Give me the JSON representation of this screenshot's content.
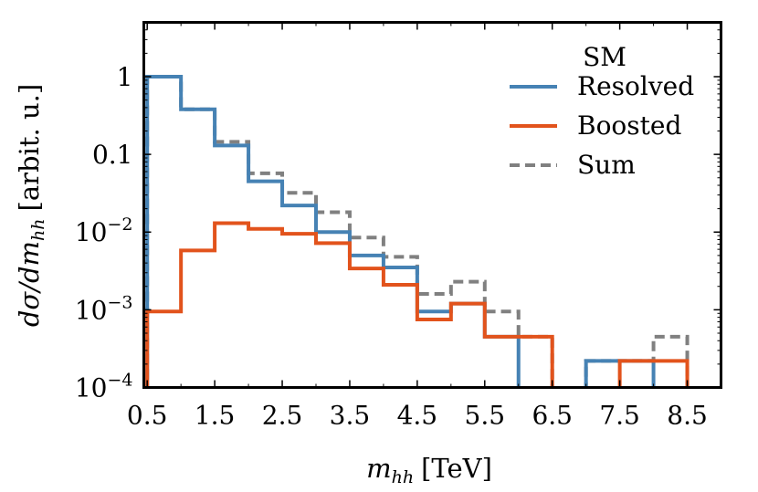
{
  "chart_data": {
    "type": "line",
    "step": "post",
    "title": "",
    "xlabel_var": "m",
    "xlabel_sub": "hh",
    "xlabel_unit": "[TeV]",
    "ylabel_var": "dσ/dm",
    "ylabel_sub": "hh",
    "ylabel_unit": "[arbit. u.]",
    "xscale": "linear",
    "yscale": "log",
    "xlim": [
      0.45,
      9.0
    ],
    "ylim": [
      0.0001,
      5
    ],
    "x_ticks": [
      0.5,
      1.5,
      2.5,
      3.5,
      4.5,
      5.5,
      6.5,
      7.5,
      8.5
    ],
    "x_tick_labels": [
      "0.5",
      "1.5",
      "2.5",
      "3.5",
      "4.5",
      "5.5",
      "6.5",
      "7.5",
      "8.5"
    ],
    "y_ticks": [
      1,
      0.1,
      0.01,
      0.001,
      0.0001
    ],
    "y_tick_labels": [
      {
        "base": "1",
        "exp": ""
      },
      {
        "base": "0.1",
        "exp": ""
      },
      {
        "base": "10",
        "exp": "−2"
      },
      {
        "base": "10",
        "exp": "−3"
      },
      {
        "base": "10",
        "exp": "−4"
      }
    ],
    "bin_edges": [
      0.5,
      1.0,
      1.5,
      2.0,
      2.5,
      3.0,
      3.5,
      4.0,
      4.5,
      5.0,
      5.5,
      6.0,
      6.5,
      7.0,
      7.5,
      8.0,
      8.5
    ],
    "series": [
      {
        "name": "Resolved",
        "color": "#4682b4",
        "dash": "solid",
        "values": [
          1.0,
          0.38,
          0.13,
          0.045,
          0.022,
          0.01,
          0.005,
          0.0035,
          0.00095,
          0.0012,
          0.00045,
          0,
          0,
          0.00022,
          0.00022,
          0
        ]
      },
      {
        "name": "Boosted",
        "color": "#e2531c",
        "dash": "solid",
        "values": [
          0.00095,
          0.0058,
          0.013,
          0.011,
          0.0095,
          0.0072,
          0.0034,
          0.0021,
          0.00075,
          0.0012,
          0.00045,
          0.00045,
          0,
          0,
          0.00022,
          0.00022
        ]
      },
      {
        "name": "Sum",
        "color": "#808080",
        "dash": "dashed",
        "values": [
          1.0,
          0.38,
          0.145,
          0.057,
          0.032,
          0.018,
          0.0085,
          0.0048,
          0.0016,
          0.0023,
          0.00095,
          0.00045,
          0,
          0.00022,
          0.00022,
          0.00045
        ]
      }
    ],
    "legend_title": "SM",
    "legend_position": "top-right",
    "grid": false
  }
}
